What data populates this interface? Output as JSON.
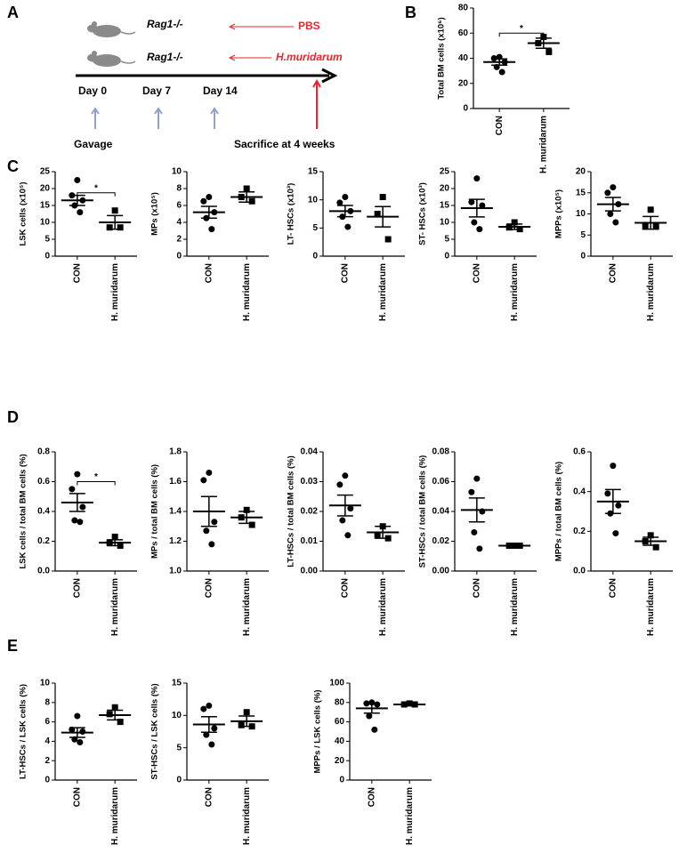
{
  "panel_labels": [
    "A",
    "B",
    "C",
    "D",
    "E"
  ],
  "diagram": {
    "strains": [
      "Rag1-/-",
      "Rag1-/-"
    ],
    "treatments": [
      "PBS",
      "H.muridarum"
    ],
    "timepoints": [
      "Day 0",
      "Day 7",
      "Day 14"
    ],
    "gavage": "Gavage",
    "endpoint": "Sacrifice at 4 weeks"
  },
  "chart_data": [
    {
      "type": "dotplot",
      "ylabel": "Total BM cells (x10⁶)",
      "categories": [
        "CON",
        "H. muridarum"
      ],
      "points": [
        [
          41,
          40,
          37,
          33,
          29
        ],
        [
          57,
          52,
          45
        ]
      ],
      "means": [
        37,
        52
      ],
      "sem": [
        2.5,
        4
      ],
      "ylim": [
        0,
        80
      ],
      "yticks": [
        0,
        20,
        40,
        60,
        80
      ],
      "significance": "*"
    },
    {
      "type": "dotplot",
      "ylabel": "LSK cells (x10⁵)",
      "categories": [
        "CON",
        "H. muridarum"
      ],
      "points": [
        [
          22.5,
          18,
          16.5,
          15,
          13
        ],
        [
          13.5,
          8.5,
          8.5
        ]
      ],
      "means": [
        16.5,
        10
      ],
      "sem": [
        1.5,
        2
      ],
      "ylim": [
        0,
        25
      ],
      "yticks": [
        0,
        5,
        10,
        15,
        20,
        25
      ],
      "significance": "*"
    },
    {
      "type": "dotplot",
      "ylabel": "MPs (x10⁵)",
      "categories": [
        "CON",
        "H. muridarum"
      ],
      "points": [
        [
          7,
          6.5,
          5.2,
          4.5,
          3.2
        ],
        [
          8,
          7,
          6.5
        ]
      ],
      "means": [
        5.2,
        7
      ],
      "sem": [
        0.7,
        0.6
      ],
      "ylim": [
        0,
        10
      ],
      "yticks": [
        0,
        2,
        4,
        6,
        8,
        10
      ]
    },
    {
      "type": "dotplot",
      "ylabel": "LT- HSCs (x10³)",
      "categories": [
        "CON",
        "H. muridarum"
      ],
      "points": [
        [
          10.5,
          9.5,
          8,
          7,
          5.2
        ],
        [
          10.5,
          7.5,
          3
        ]
      ],
      "means": [
        8,
        7
      ],
      "sem": [
        1,
        1.8
      ],
      "ylim": [
        0,
        15
      ],
      "yticks": [
        0,
        5,
        10,
        15
      ]
    },
    {
      "type": "dotplot",
      "ylabel": "ST- HSCs (x10³)",
      "categories": [
        "CON",
        "H. muridarum"
      ],
      "points": [
        [
          23,
          16,
          15,
          10,
          8
        ],
        [
          10,
          8.5,
          8
        ]
      ],
      "means": [
        14.2,
        8.7
      ],
      "sem": [
        2.6,
        0.8
      ],
      "ylim": [
        0,
        25
      ],
      "yticks": [
        0,
        5,
        10,
        15,
        20,
        25
      ]
    },
    {
      "type": "dotplot",
      "ylabel": "MPPs (x10⁵)",
      "categories": [
        "CON",
        "H. muridarum"
      ],
      "points": [
        [
          16.3,
          15,
          12.3,
          10,
          8
        ],
        [
          11,
          7,
          7
        ]
      ],
      "means": [
        12.3,
        7.9
      ],
      "sem": [
        1.6,
        1.5
      ],
      "ylim": [
        0,
        20
      ],
      "yticks": [
        0,
        5,
        10,
        15,
        20
      ]
    },
    {
      "type": "dotplot",
      "ylabel": "LSK cells / total BM cells (%)",
      "categories": [
        "CON",
        "H. muridarum"
      ],
      "points": [
        [
          0.65,
          0.55,
          0.43,
          0.34,
          0.33
        ],
        [
          0.23,
          0.19,
          0.17
        ]
      ],
      "means": [
        0.46,
        0.19
      ],
      "sem": [
        0.06,
        0.02
      ],
      "ylim": [
        0,
        0.8
      ],
      "yticks": [
        {
          "value": 0,
          "label": "0.0"
        },
        0.2,
        0.4,
        0.6,
        0.8
      ],
      "significance": "*"
    },
    {
      "type": "dotplot",
      "ylabel": "MPs / total BM cells (%)",
      "categories": [
        "CON",
        "H. muridarum"
      ],
      "points": [
        [
          1.66,
          1.61,
          1.33,
          1.27,
          1.18
        ],
        [
          1.41,
          1.36,
          1.31
        ]
      ],
      "means": [
        1.4,
        1.36
      ],
      "sem": [
        0.1,
        0.04
      ],
      "ylim": [
        1,
        1.8
      ],
      "yticks": [
        {
          "value": 1,
          "label": "1.0"
        },
        1.2,
        1.4,
        1.6,
        1.8
      ]
    },
    {
      "type": "dotplot",
      "ylabel": "LT-HSCs / total BM cells (%)",
      "categories": [
        "CON",
        "H. muridarum"
      ],
      "points": [
        [
          0.032,
          0.029,
          0.021,
          0.017,
          0.012
        ],
        [
          0.015,
          0.012,
          0.011
        ]
      ],
      "means": [
        0.022,
        0.013
      ],
      "sem": [
        0.0035,
        0.002
      ],
      "ylim": [
        0,
        0.04
      ],
      "yticks": [
        {
          "value": 0,
          "label": "0.00"
        },
        0.01,
        0.02,
        0.03,
        0.04
      ]
    },
    {
      "type": "dotplot",
      "ylabel": "ST-HSCs / total BM cells (%)",
      "categories": [
        "CON",
        "H. muridarum"
      ],
      "points": [
        [
          0.062,
          0.053,
          0.04,
          0.026,
          0.015
        ],
        [
          0.017,
          0.017,
          0.017
        ]
      ],
      "means": [
        0.041,
        0.017
      ],
      "sem": [
        0.008,
        0.0005
      ],
      "ylim": [
        0,
        0.08
      ],
      "yticks": [
        {
          "value": 0,
          "label": "0.00"
        },
        0.02,
        0.04,
        0.06,
        0.08
      ]
    },
    {
      "type": "dotplot",
      "ylabel": "MPPs / total BM cells (%)",
      "categories": [
        "CON",
        "H. muridarum"
      ],
      "points": [
        [
          0.53,
          0.39,
          0.33,
          0.29,
          0.19
        ],
        [
          0.18,
          0.15,
          0.12
        ]
      ],
      "means": [
        0.35,
        0.15
      ],
      "sem": [
        0.06,
        0.02
      ],
      "ylim": [
        0,
        0.6
      ],
      "yticks": [
        {
          "value": 0,
          "label": "0.0"
        },
        0.2,
        0.4,
        0.6
      ]
    },
    {
      "type": "dotplot",
      "ylabel": "LT-HSCs / LSK cells (%)",
      "categories": [
        "CON",
        "H. muridarum"
      ],
      "points": [
        [
          6.6,
          5.2,
          5,
          4.2,
          3.9
        ],
        [
          7.5,
          6.8,
          6
        ]
      ],
      "means": [
        4.9,
        6.7
      ],
      "sem": [
        0.5,
        0.5
      ],
      "ylim": [
        0,
        10
      ],
      "yticks": [
        0,
        2,
        4,
        6,
        8,
        10
      ]
    },
    {
      "type": "dotplot",
      "ylabel": "ST-HSCs / LSK cells (%)",
      "categories": [
        "CON",
        "H. muridarum"
      ],
      "points": [
        [
          11.5,
          11,
          8,
          7,
          5.5
        ],
        [
          10.5,
          8.5,
          8.3
        ]
      ],
      "means": [
        8.6,
        9.1
      ],
      "sem": [
        1.2,
        0.8
      ],
      "ylim": [
        0,
        15
      ],
      "yticks": [
        0,
        5,
        10,
        15
      ]
    },
    {
      "type": "dotplot",
      "ylabel": "MPPs / LSK cells (%)",
      "categories": [
        "CON",
        "H. muridarum"
      ],
      "points": [
        [
          80,
          79,
          78,
          66,
          52
        ],
        [
          79,
          78,
          78
        ]
      ],
      "means": [
        74,
        78
      ],
      "sem": [
        5,
        0.5
      ],
      "ylim": [
        0,
        100
      ],
      "yticks": [
        0,
        20,
        40,
        60,
        80,
        100
      ]
    }
  ]
}
